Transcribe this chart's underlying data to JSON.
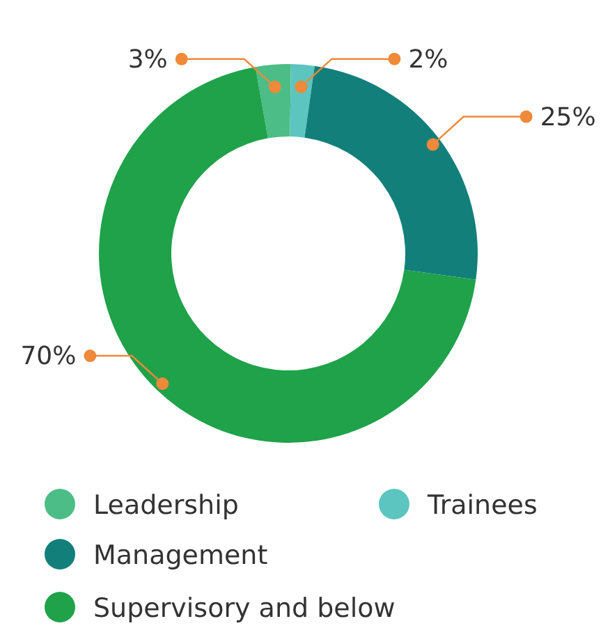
{
  "chart_data": {
    "type": "donut",
    "categories": [
      "Leadership",
      "Trainees",
      "Management",
      "Supervisory and below"
    ],
    "values": [
      3,
      2,
      25,
      70
    ],
    "colors": [
      "#4cbd86",
      "#5cc5c0",
      "#137f7a",
      "#1fa24a"
    ],
    "value_labels": [
      "3%",
      "2%",
      "25%",
      "70%"
    ],
    "legend": "bottom"
  }
}
